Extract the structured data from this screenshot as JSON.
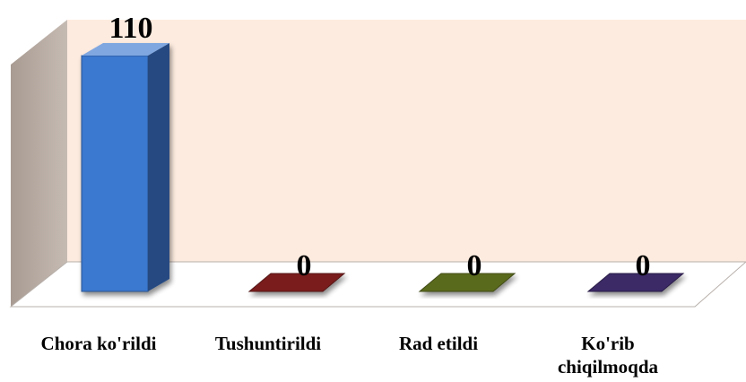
{
  "chart_data": {
    "type": "bar",
    "style": "3d-column",
    "title": "",
    "xlabel": "",
    "ylabel": "",
    "categories": [
      "Chora ko'rildi",
      "Tushuntirildi",
      "Rad etildi",
      "Ko'rib chiqilmoqda"
    ],
    "category_lines": [
      [
        "Chora ko'rildi"
      ],
      [
        "Tushuntirildi"
      ],
      [
        "Rad etildi"
      ],
      [
        "Ko'rib",
        "chiqilmoqda"
      ]
    ],
    "values": [
      110,
      0,
      0,
      0
    ],
    "value_labels": [
      "110",
      "0",
      "0",
      "0"
    ],
    "ylim": [
      0,
      110
    ],
    "grid": false,
    "legend": "none",
    "colors": {
      "bars": [
        "#3b78d0",
        "#7a1e1e",
        "#5a6b1e",
        "#3b2a66"
      ],
      "back_wall": "#fdebdf",
      "side_wall": "#b9ada4",
      "floor": "#ffffff"
    }
  }
}
